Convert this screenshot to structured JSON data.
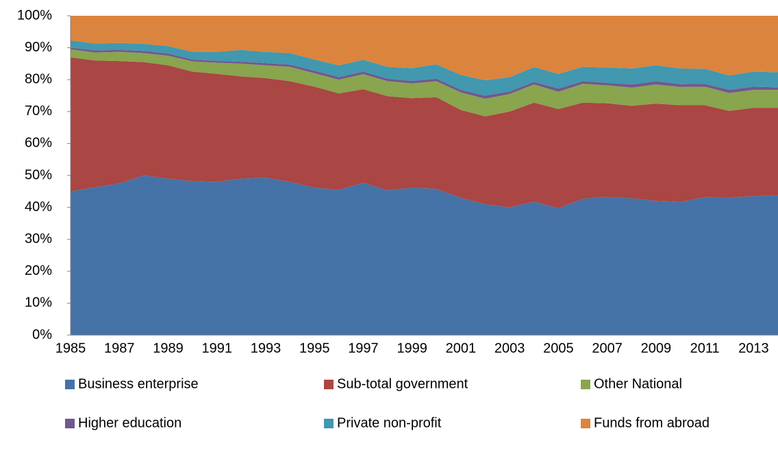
{
  "chart_data": {
    "type": "stacked_area",
    "categories": [
      "1985",
      null,
      "1987",
      null,
      "1989",
      null,
      "1991",
      null,
      "1993",
      null,
      "1995",
      null,
      "1997",
      null,
      "1999",
      null,
      "2001",
      null,
      "2003",
      null,
      "2005",
      null,
      "2007",
      null,
      "2009",
      null,
      "2011",
      null,
      "2013",
      null
    ],
    "series": [
      {
        "name": "Business enterprise",
        "color": "#4572a7",
        "values": [
          45,
          46.3,
          47.5,
          50,
          49,
          48.2,
          48,
          49,
          49.3,
          48,
          46.2,
          45.5,
          47.7,
          45.3,
          46.2,
          45.8,
          43,
          41,
          40,
          41.8,
          39.7,
          42.7,
          43.3,
          42.8,
          42,
          41.7,
          43.2,
          43.1,
          43.5,
          43.8
        ]
      },
      {
        "name": "Sub-total government",
        "color": "#aa4643",
        "values": [
          42,
          39.7,
          38.3,
          35.5,
          35.5,
          34.3,
          33.8,
          32,
          31.2,
          31.5,
          31.6,
          30.2,
          29.3,
          29.5,
          28,
          28.7,
          27.5,
          27.5,
          30,
          31,
          31.1,
          30.1,
          29.3,
          29,
          30.5,
          30.3,
          28.8,
          27.1,
          27.7,
          27.4
        ]
      },
      {
        "name": "Other National",
        "color": "#89a54e",
        "values": [
          2.5,
          2.5,
          2.9,
          2.8,
          3,
          3.2,
          3.5,
          4,
          4,
          4.5,
          4.2,
          4.3,
          4.7,
          4.7,
          4.6,
          5,
          5.5,
          5.5,
          5.5,
          5.7,
          5.4,
          5.9,
          5.6,
          5.7,
          6,
          5.7,
          5.8,
          5.6,
          5.6,
          5.6
        ]
      },
      {
        "name": "Higher education",
        "color": "#71588f",
        "values": [
          0.5,
          0.7,
          0.6,
          0.7,
          0.7,
          0.6,
          0.6,
          0.6,
          0.7,
          0.7,
          0.8,
          0.8,
          0.8,
          0.8,
          0.8,
          0.8,
          0.8,
          1,
          0.8,
          0.8,
          1,
          0.8,
          0.8,
          1,
          1,
          0.9,
          0.9,
          1,
          1,
          0.8
        ]
      },
      {
        "name": "Private non-profit",
        "color": "#4198af",
        "values": [
          2.3,
          2.1,
          2.2,
          2.2,
          2.3,
          2.4,
          2.8,
          3.7,
          3.5,
          3.6,
          3.5,
          3.7,
          3.7,
          3.7,
          4,
          4.5,
          4.7,
          4.8,
          4.5,
          4.6,
          4.6,
          4.5,
          4.8,
          5,
          5,
          4.9,
          4.7,
          4.5,
          4.7,
          4.7
        ]
      },
      {
        "name": "Funds from abroad",
        "color": "#db843d",
        "values": [
          7.7,
          8.7,
          8.5,
          8.8,
          9.5,
          11.3,
          11.3,
          10.7,
          11.3,
          11.7,
          13.7,
          15.5,
          13.8,
          16,
          16.4,
          15.2,
          18.5,
          20.2,
          19.2,
          16.1,
          18.2,
          16,
          16.2,
          16.5,
          15.5,
          16.5,
          16.6,
          18.7,
          17.5,
          17.7
        ]
      }
    ],
    "ylim": [
      0,
      100
    ],
    "yticks": [
      {
        "value": 0,
        "label": "0%"
      },
      {
        "value": 10,
        "label": "10%"
      },
      {
        "value": 20,
        "label": "20%"
      },
      {
        "value": 30,
        "label": "30%"
      },
      {
        "value": 40,
        "label": "40%"
      },
      {
        "value": 50,
        "label": "50%"
      },
      {
        "value": 60,
        "label": "60%"
      },
      {
        "value": 70,
        "label": "70%"
      },
      {
        "value": 80,
        "label": "80%"
      },
      {
        "value": 90,
        "label": "90%"
      },
      {
        "value": 100,
        "label": "100%"
      }
    ],
    "legend": "bottom"
  }
}
